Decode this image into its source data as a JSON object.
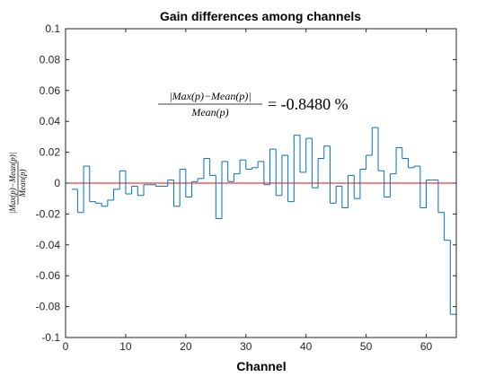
{
  "chart_data": {
    "type": "stairs",
    "title": "Gain differences among channels",
    "xlabel": "Channel",
    "ylabel": "|Max(p)−Mean(p)| / Mean(p)",
    "ylabel_numerator": "|Max(p)−Mean(p)|",
    "ylabel_denominator": "Mean(p)",
    "xlim": [
      0,
      65
    ],
    "ylim": [
      -0.1,
      0.1
    ],
    "xticks": [
      0,
      10,
      20,
      30,
      40,
      50,
      60
    ],
    "xtick_labels": [
      "0",
      "10",
      "20",
      "30",
      "40",
      "50",
      "60"
    ],
    "yticks": [
      -0.1,
      -0.08,
      -0.06,
      -0.04,
      -0.02,
      0,
      0.02,
      0.04,
      0.06,
      0.08,
      0.1
    ],
    "ytick_labels": [
      "-0.1",
      "-0.08",
      "-0.06",
      "-0.04",
      "-0.02",
      "0",
      "0.02",
      "0.04",
      "0.06",
      "0.08",
      "0.1"
    ],
    "grid": false,
    "annotation": {
      "numerator": "|Max(p)−Mean(p)|",
      "denominator": "Mean(p)",
      "value_text": "= -0.8480 %"
    },
    "series": [
      {
        "color": "#0072bd",
        "x": [
          1,
          2,
          3,
          4,
          5,
          6,
          7,
          8,
          9,
          10,
          11,
          12,
          13,
          14,
          15,
          16,
          17,
          18,
          19,
          20,
          21,
          22,
          23,
          24,
          25,
          26,
          27,
          28,
          29,
          30,
          31,
          32,
          33,
          34,
          35,
          36,
          37,
          38,
          39,
          40,
          41,
          42,
          43,
          44,
          45,
          46,
          47,
          48,
          49,
          50,
          51,
          52,
          53,
          54,
          55,
          56,
          57,
          58,
          59,
          60,
          61,
          62,
          63,
          64,
          65
        ],
        "y": [
          -0.004,
          -0.019,
          0.011,
          -0.012,
          -0.013,
          -0.015,
          -0.011,
          -0.004,
          0.008,
          -0.007,
          -0.002,
          -0.008,
          -0.001,
          -0.001,
          -0.002,
          -0.002,
          0.002,
          -0.015,
          0.009,
          -0.009,
          0.001,
          0.003,
          0.016,
          0.005,
          -0.023,
          0.014,
          0.001,
          0.006,
          0.015,
          0.009,
          0.01,
          0.014,
          -0.001,
          0.022,
          -0.008,
          0.018,
          -0.012,
          0.031,
          0.007,
          0.029,
          -0.003,
          0.016,
          0.024,
          -0.013,
          -0.002,
          -0.016,
          0.005,
          -0.01,
          0.009,
          0.018,
          0.036,
          0.008,
          -0.009,
          0.006,
          0.023,
          0.016,
          0.01,
          0.011,
          -0.016,
          0.002,
          0.002,
          -0.019,
          -0.037,
          -0.085,
          -0.085
        ]
      }
    ],
    "reference_line": {
      "y": 0,
      "color": "#ff0000"
    }
  }
}
